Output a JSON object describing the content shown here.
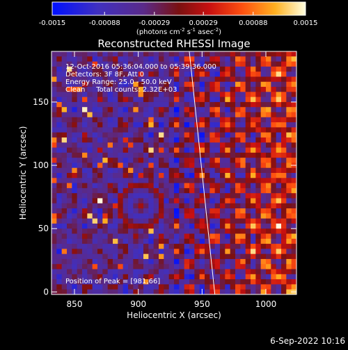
{
  "colorbar": {
    "ticks": [
      "-0.0015",
      "-0.00088",
      "-0.00029",
      "0.00029",
      "0.00088",
      "0.0015"
    ],
    "tick_values": [
      -0.0015,
      -0.00088,
      -0.00029,
      0.00029,
      0.00088,
      0.0015
    ],
    "range": [
      -0.0015,
      0.0015
    ],
    "units_main": "(photons cm",
    "units_sup1": "-2",
    "units_mid1": " s",
    "units_sup2": "-1",
    "units_mid2": " asec",
    "units_sup3": "-2",
    "units_end": ")"
  },
  "chart_data": {
    "type": "heatmap",
    "title": "Reconstructed RHESSI Image",
    "xlabel": "Heliocentric X (arcsec)",
    "ylabel": "Heliocentric Y (arcsec)",
    "xlim": [
      832,
      1024
    ],
    "ylim": [
      -2,
      190
    ],
    "x_ticks": [
      850,
      900,
      950,
      1000
    ],
    "y_ticks": [
      0,
      50,
      100,
      150
    ],
    "x_tick_labels": [
      "850",
      "900",
      "950",
      "1000"
    ],
    "y_tick_labels": [
      "0",
      "50",
      "100",
      "150"
    ],
    "colormap": "blue-purple-red-yellow-white",
    "annotations": {
      "line1": "12-Oct-2016 05:36:04.000 to 05:39:36.000",
      "line2": "Detectors: 3F 8F, Att 0",
      "line3": "Energy Range: 25.0 - 50.0 keV",
      "line4": "Clean     Total counts: 2.32E+03",
      "peak": "Position of Peak = [981,66]"
    },
    "peak_position": [
      981,
      66
    ],
    "limb_line": [
      [
        940,
        190
      ],
      [
        960,
        -2
      ]
    ]
  },
  "footer": {
    "timestamp": "6-Sep-2022 10:16"
  }
}
